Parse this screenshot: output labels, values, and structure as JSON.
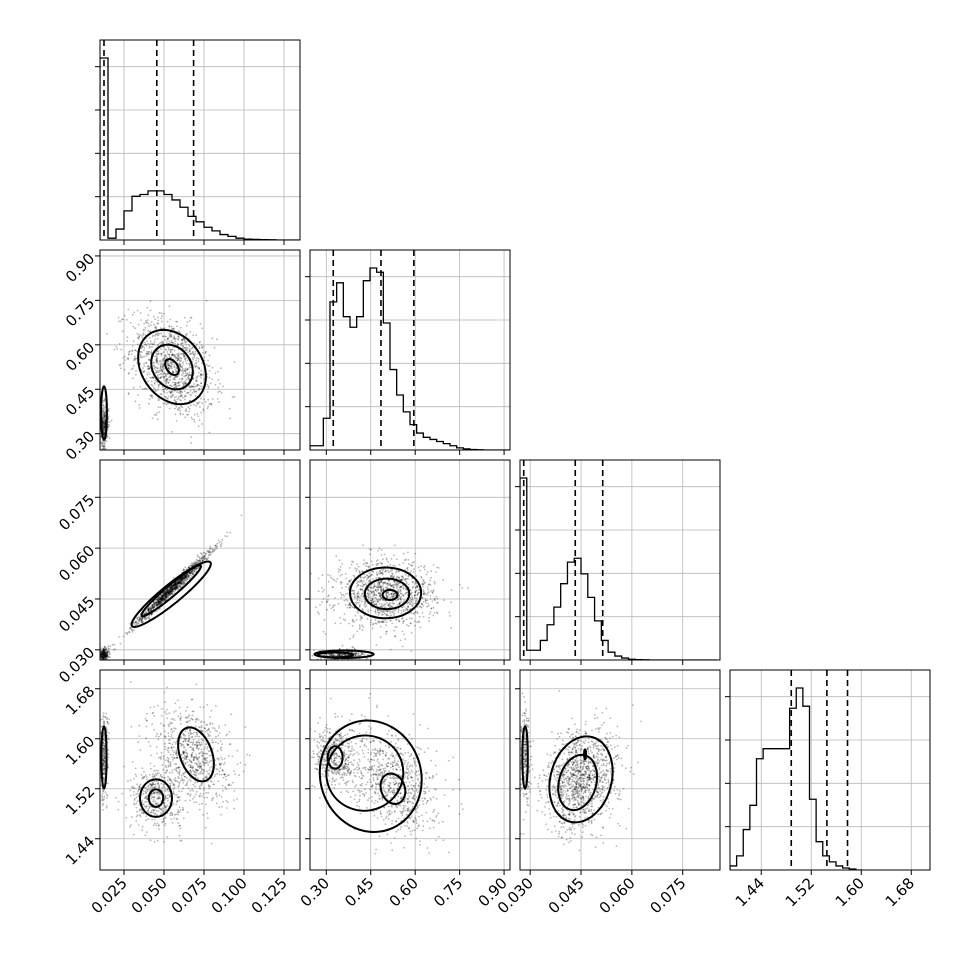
{
  "chart_data": {
    "type": "scatter",
    "title": "",
    "parameters": [
      {
        "ticks": [
          "0.025",
          "0.050",
          "0.075",
          "0.100",
          "0.125"
        ],
        "tick_values": [
          0.025,
          0.05,
          0.075,
          0.1,
          0.125
        ],
        "range": [
          0.01,
          0.135
        ]
      },
      {
        "ticks": [
          "0.30",
          "0.45",
          "0.60",
          "0.75",
          "0.90"
        ],
        "tick_values": [
          0.3,
          0.45,
          0.6,
          0.75,
          0.9
        ],
        "range": [
          0.245,
          0.92
        ]
      },
      {
        "ticks": [
          "0.030",
          "0.045",
          "0.060",
          "0.075"
        ],
        "tick_values": [
          0.03,
          0.045,
          0.06,
          0.075
        ],
        "range": [
          0.027,
          0.086
        ]
      },
      {
        "ticks": [
          "1.44",
          "1.52",
          "1.60",
          "1.68"
        ],
        "tick_values": [
          1.44,
          1.52,
          1.6,
          1.68
        ],
        "range": [
          1.39,
          1.71
        ]
      }
    ],
    "histograms": [
      {
        "edges_start": 0.01,
        "bin_width": 0.005,
        "counts": [
          1.0,
          0.01,
          0.06,
          0.16,
          0.24,
          0.25,
          0.27,
          0.27,
          0.25,
          0.22,
          0.18,
          0.13,
          0.1,
          0.07,
          0.05,
          0.03,
          0.02,
          0.01,
          0.005,
          0.003,
          0.002,
          0.001,
          0.0,
          0.0,
          0.0
        ],
        "quantiles": [
          0.0125,
          0.0455,
          0.0685
        ]
      },
      {
        "edges_start": 0.245,
        "bin_width": 0.0225,
        "counts": [
          0.02,
          0.02,
          0.15,
          0.7,
          0.79,
          0.63,
          0.58,
          0.63,
          0.8,
          0.86,
          0.84,
          0.6,
          0.38,
          0.26,
          0.18,
          0.12,
          0.08,
          0.06,
          0.05,
          0.04,
          0.03,
          0.02,
          0.01,
          0.005,
          0.002,
          0.001,
          0.0,
          0.0,
          0.0,
          0.0
        ],
        "quantiles": [
          0.3235,
          0.4845,
          0.5955
        ]
      },
      {
        "edges_start": 0.027,
        "bin_width": 0.002,
        "counts": [
          0.93,
          0.05,
          0.05,
          0.1,
          0.18,
          0.27,
          0.39,
          0.5,
          0.52,
          0.44,
          0.32,
          0.2,
          0.1,
          0.04,
          0.02,
          0.01,
          0.004,
          0.002,
          0.001,
          0.0,
          0.0,
          0.0,
          0.0,
          0.0,
          0.0,
          0.0,
          0.0,
          0.0,
          0.0
        ],
        "quantiles": [
          0.0281,
          0.0433,
          0.0514
        ]
      },
      {
        "edges_start": 1.39,
        "bin_width": 0.0106,
        "counts": [
          0.02,
          0.07,
          0.2,
          0.32,
          0.55,
          0.6,
          0.6,
          0.6,
          0.6,
          0.8,
          0.9,
          0.81,
          0.35,
          0.14,
          0.07,
          0.04,
          0.02,
          0.01,
          0.005,
          0.0
        ],
        "quantiles": [
          1.488,
          1.545,
          1.578
        ]
      }
    ],
    "panels": [
      {
        "row": 1,
        "col": 0,
        "modes": [
          {
            "cx": 0.055,
            "cy": 0.525,
            "sx": 0.013,
            "sy": 0.085,
            "rho": -0.35,
            "n": 1150
          },
          {
            "cx": 0.0125,
            "cy": 0.33,
            "sx": 0.0015,
            "sy": 0.035,
            "rho": 0.0,
            "n": 320
          }
        ]
      },
      {
        "row": 2,
        "col": 0,
        "modes": [
          {
            "cx": 0.055,
            "cy": 0.048,
            "sx": 0.012,
            "sy": 0.0055,
            "rho": 0.985,
            "n": 1200
          },
          {
            "cx": 0.0125,
            "cy": 0.0285,
            "sx": 0.0015,
            "sy": 0.0009,
            "rho": 0.0,
            "n": 250
          }
        ]
      },
      {
        "row": 2,
        "col": 1,
        "modes": [
          {
            "cx": 0.5,
            "cy": 0.0465,
            "sx": 0.085,
            "sy": 0.0048,
            "rho": 0.0,
            "n": 1150
          },
          {
            "cx": 0.36,
            "cy": 0.0285,
            "sx": 0.04,
            "sy": 0.0009,
            "rho": 0.0,
            "n": 300
          }
        ]
      },
      {
        "row": 3,
        "col": 0,
        "modes": [
          {
            "cx": 0.045,
            "cy": 1.505,
            "sx": 0.008,
            "sy": 0.025,
            "rho": 0.0,
            "n": 450
          },
          {
            "cx": 0.068,
            "cy": 1.575,
            "sx": 0.012,
            "sy": 0.04,
            "rho": -0.25,
            "n": 750
          },
          {
            "cx": 0.0125,
            "cy": 1.57,
            "sx": 0.0015,
            "sy": 0.035,
            "rho": 0.0,
            "n": 250
          }
        ]
      },
      {
        "row": 3,
        "col": 1,
        "modes": [
          {
            "cx": 0.33,
            "cy": 1.57,
            "sx": 0.035,
            "sy": 0.025,
            "rho": 0.0,
            "n": 450
          },
          {
            "cx": 0.53,
            "cy": 1.53,
            "sx": 0.07,
            "sy": 0.04,
            "rho": -0.3,
            "n": 800
          }
        ]
      },
      {
        "row": 3,
        "col": 2,
        "modes": [
          {
            "cx": 0.045,
            "cy": 1.535,
            "sx": 0.0055,
            "sy": 0.04,
            "rho": 0.2,
            "n": 1150
          },
          {
            "cx": 0.0285,
            "cy": 1.57,
            "sx": 0.0008,
            "sy": 0.035,
            "rho": 0.0,
            "n": 250
          }
        ]
      }
    ],
    "contours": [
      {
        "row": 1,
        "col": 0,
        "levels": [
          {
            "cx": 0.055,
            "cy": 0.525,
            "rx": 0.0035,
            "ry": 0.03,
            "rot": -35
          },
          {
            "cx": 0.055,
            "cy": 0.525,
            "rx": 0.012,
            "ry": 0.08,
            "rot": -35
          },
          {
            "cx": 0.055,
            "cy": 0.525,
            "rx": 0.019,
            "ry": 0.135,
            "rot": -35
          },
          {
            "cx": 0.0125,
            "cy": 0.37,
            "rx": 0.0018,
            "ry": 0.09,
            "rot": 0
          }
        ]
      },
      {
        "row": 2,
        "col": 0,
        "levels": [
          {
            "cx": 0.055,
            "cy": 0.0475,
            "rx": 0.022,
            "ry": 0.0012,
            "rot": 0,
            "band": true,
            "x0": 0.036,
            "y0": 0.04,
            "x1": 0.073,
            "y1": 0.0548,
            "w": 0.0016
          },
          {
            "cx": 0.055,
            "cy": 0.0475,
            "rx": 0.022,
            "ry": 0.0012,
            "rot": 0,
            "band": true,
            "x0": 0.03,
            "y0": 0.037,
            "x1": 0.079,
            "y1": 0.0558,
            "w": 0.0028
          }
        ]
      },
      {
        "row": 2,
        "col": 1,
        "levels": [
          {
            "cx": 0.515,
            "cy": 0.0462,
            "rx": 0.025,
            "ry": 0.0015,
            "rot": 0
          },
          {
            "cx": 0.505,
            "cy": 0.0465,
            "rx": 0.075,
            "ry": 0.0045,
            "rot": 0
          },
          {
            "cx": 0.5,
            "cy": 0.0468,
            "rx": 0.12,
            "ry": 0.0075,
            "rot": 0
          },
          {
            "cx": 0.36,
            "cy": 0.0287,
            "rx": 0.1,
            "ry": 0.0011,
            "rot": 0
          },
          {
            "cx": 0.33,
            "cy": 0.0285,
            "rx": 0.06,
            "ry": 0.0007,
            "rot": 0
          }
        ]
      },
      {
        "row": 3,
        "col": 0,
        "levels": [
          {
            "cx": 0.045,
            "cy": 1.505,
            "rx": 0.0045,
            "ry": 0.014,
            "rot": 0
          },
          {
            "cx": 0.045,
            "cy": 1.505,
            "rx": 0.01,
            "ry": 0.03,
            "rot": 0
          },
          {
            "cx": 0.07,
            "cy": 1.575,
            "rx": 0.01,
            "ry": 0.045,
            "rot": -20
          },
          {
            "cx": 0.0125,
            "cy": 1.57,
            "rx": 0.0016,
            "ry": 0.05,
            "rot": 0
          }
        ]
      },
      {
        "row": 3,
        "col": 1,
        "levels": [
          {
            "cx": 0.33,
            "cy": 1.57,
            "rx": 0.025,
            "ry": 0.018,
            "rot": 0
          },
          {
            "cx": 0.525,
            "cy": 1.52,
            "rx": 0.04,
            "ry": 0.025,
            "rot": -20
          },
          {
            "cx": 0.43,
            "cy": 1.545,
            "rx": 0.13,
            "ry": 0.06,
            "rot": -18
          },
          {
            "cx": 0.45,
            "cy": 1.54,
            "rx": 0.17,
            "ry": 0.09,
            "rot": -18
          }
        ]
      },
      {
        "row": 3,
        "col": 2,
        "levels": [
          {
            "cx": 0.0462,
            "cy": 1.575,
            "rx": 0.0003,
            "ry": 0.008,
            "rot": 0
          },
          {
            "cx": 0.044,
            "cy": 1.53,
            "rx": 0.0055,
            "ry": 0.045,
            "rot": 15
          },
          {
            "cx": 0.045,
            "cy": 1.535,
            "rx": 0.009,
            "ry": 0.07,
            "rot": 15
          },
          {
            "cx": 0.0285,
            "cy": 1.57,
            "rx": 0.0008,
            "ry": 0.05,
            "rot": 0
          }
        ]
      }
    ],
    "grid": true,
    "legend": "none"
  }
}
